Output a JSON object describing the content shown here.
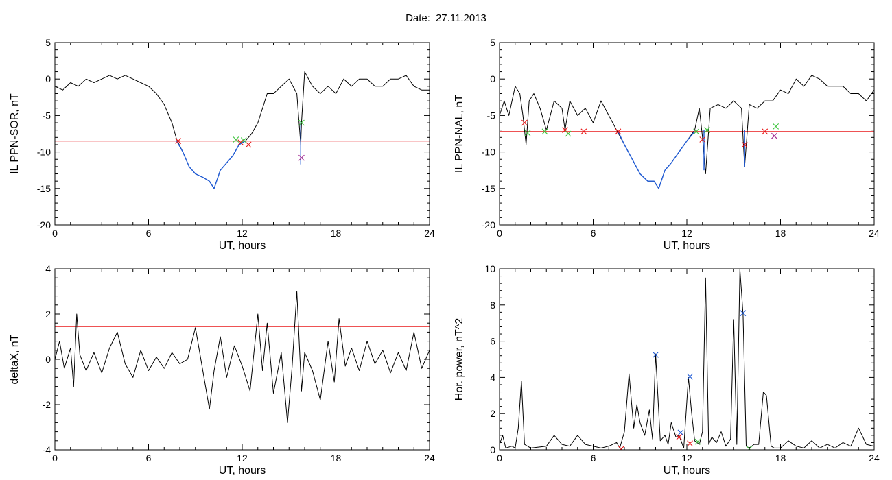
{
  "figure": {
    "date_label": "Date:",
    "date": "27.11.2013"
  },
  "colors": {
    "black": "#000000",
    "red": "#e8191a",
    "blue": "#1f5bd6",
    "green": "#3fc43f",
    "purple": "#a0268f"
  },
  "chart_data": [
    {
      "type": "line",
      "ylabel": "IL PPN-SOR, nT",
      "xlabel": "UT, hours",
      "xlim": [
        0,
        24
      ],
      "ylim": [
        -20,
        5
      ],
      "xticks": [
        0,
        6,
        12,
        18,
        24
      ],
      "yticks": [
        5,
        0,
        -5,
        -10,
        -15,
        -20
      ],
      "threshold": -8.5,
      "series": [
        {
          "color": "black",
          "x": [
            0,
            0.5,
            1,
            1.5,
            2,
            2.5,
            3,
            3.5,
            4,
            4.5,
            5,
            5.5,
            6,
            6.5,
            7,
            7.5,
            7.8,
            8.2,
            8.6,
            9,
            9.5,
            9.9,
            10.2,
            10.6,
            11,
            11.4,
            11.8,
            12.2,
            12.6,
            13,
            13.3,
            13.6,
            14,
            14.5,
            15,
            15.5,
            15.75,
            15.8,
            16,
            16.5,
            17,
            17.5,
            18,
            18.5,
            19,
            19.5,
            20,
            20.5,
            21,
            21.5,
            22,
            22.5,
            23,
            23.5,
            24
          ],
          "y": [
            -1,
            -1.5,
            -0.5,
            -1,
            0,
            -0.5,
            0,
            0.5,
            0,
            0.5,
            0,
            -0.5,
            -1,
            -2,
            -3.5,
            -6,
            -8.3,
            -10,
            -12,
            -13,
            -13.5,
            -14,
            -15,
            -12.5,
            -11.5,
            -10.5,
            -9,
            -8.5,
            -7.5,
            -6,
            -4,
            -2,
            -2,
            -1,
            0,
            -2,
            -9,
            -6,
            1,
            -1,
            -2,
            -1,
            -2,
            0,
            -1,
            0,
            0,
            -1,
            -1,
            0,
            0,
            0.5,
            -1,
            -1.5,
            -1.5
          ]
        },
        {
          "color": "blue",
          "x": [
            7.8,
            8.2,
            8.6,
            9,
            9.5,
            9.9,
            10.2,
            10.6,
            11,
            11.4,
            11.8,
            12.2
          ],
          "y": [
            -8.5,
            -10,
            -12,
            -13,
            -13.5,
            -14,
            -15,
            -12.5,
            -11.5,
            -10.5,
            -9,
            -8.5
          ]
        },
        {
          "color": "blue",
          "x": [
            15.75,
            15.75
          ],
          "y": [
            -5.8,
            -11.7
          ]
        }
      ],
      "markers": [
        {
          "color": "red",
          "x": 7.9,
          "y": -8.5
        },
        {
          "color": "red",
          "x": 11.9,
          "y": -8.7
        },
        {
          "color": "red",
          "x": 12.4,
          "y": -9.0
        },
        {
          "color": "green",
          "x": 11.6,
          "y": -8.3
        },
        {
          "color": "green",
          "x": 12.1,
          "y": -8.4
        },
        {
          "color": "green",
          "x": 15.8,
          "y": -6.0
        },
        {
          "color": "purple",
          "x": 15.8,
          "y": -10.8
        }
      ]
    },
    {
      "type": "line",
      "ylabel": "IL PPN-NAL, nT",
      "xlabel": "UT, hours",
      "xlim": [
        0,
        24
      ],
      "ylim": [
        -20,
        5
      ],
      "xticks": [
        0,
        6,
        12,
        18,
        24
      ],
      "yticks": [
        5,
        0,
        -5,
        -10,
        -15,
        -20
      ],
      "threshold": -7.2,
      "series": [
        {
          "color": "black",
          "x": [
            0,
            0.3,
            0.6,
            1,
            1.3,
            1.5,
            1.7,
            1.9,
            2.2,
            2.6,
            3,
            3.5,
            4,
            4.2,
            4.5,
            5,
            5.5,
            6,
            6.5,
            7,
            7.5,
            8,
            8.5,
            9,
            9.5,
            9.9,
            10.2,
            10.6,
            11,
            11.5,
            12,
            12.5,
            12.8,
            13,
            13.2,
            13.5,
            14,
            14.5,
            15,
            15.5,
            15.7,
            16,
            16.5,
            17,
            17.5,
            18,
            18.5,
            19,
            19.5,
            20,
            20.5,
            21,
            21.5,
            22,
            22.5,
            23,
            23.5,
            24
          ],
          "y": [
            -5,
            -3,
            -5,
            -1,
            -2,
            -5,
            -9,
            -3,
            -2,
            -4,
            -7,
            -3,
            -4,
            -7,
            -3,
            -5,
            -4,
            -6,
            -3,
            -5,
            -7,
            -9,
            -11,
            -13,
            -14,
            -14,
            -15,
            -12.5,
            -11.5,
            -10,
            -8.5,
            -7,
            -4,
            -8,
            -13,
            -4,
            -3.5,
            -4,
            -3,
            -4,
            -12,
            -3.5,
            -4,
            -3,
            -3,
            -1.5,
            -2,
            0,
            -1,
            0.5,
            0,
            -1,
            -1,
            -1,
            -2,
            -2,
            -3,
            -1.5
          ]
        },
        {
          "color": "blue",
          "x": [
            7.6,
            8,
            8.5,
            9,
            9.5,
            9.9,
            10.2,
            10.6,
            11,
            11.5,
            12,
            12.5
          ],
          "y": [
            -7.2,
            -9,
            -11,
            -13,
            -14,
            -14,
            -15,
            -12.5,
            -11.5,
            -10,
            -8.5,
            -7.2
          ]
        },
        {
          "color": "blue",
          "x": [
            13.1,
            13.1
          ],
          "y": [
            -7,
            -12.5
          ]
        },
        {
          "color": "blue",
          "x": [
            15.7,
            15.7
          ],
          "y": [
            -7,
            -12
          ]
        }
      ],
      "markers": [
        {
          "color": "red",
          "x": 1.6,
          "y": -6.0
        },
        {
          "color": "red",
          "x": 4.2,
          "y": -7.0
        },
        {
          "color": "red",
          "x": 5.4,
          "y": -7.2
        },
        {
          "color": "red",
          "x": 7.6,
          "y": -7.2
        },
        {
          "color": "red",
          "x": 13.0,
          "y": -8.3
        },
        {
          "color": "red",
          "x": 15.7,
          "y": -9.0
        },
        {
          "color": "red",
          "x": 17.0,
          "y": -7.2
        },
        {
          "color": "purple",
          "x": 17.6,
          "y": -7.8
        },
        {
          "color": "green",
          "x": 1.8,
          "y": -7.4
        },
        {
          "color": "green",
          "x": 2.9,
          "y": -7.2
        },
        {
          "color": "green",
          "x": 4.4,
          "y": -7.5
        },
        {
          "color": "green",
          "x": 12.6,
          "y": -7.2
        },
        {
          "color": "green",
          "x": 13.3,
          "y": -7.0
        },
        {
          "color": "green",
          "x": 17.7,
          "y": -6.5
        }
      ]
    },
    {
      "type": "line",
      "ylabel": "deltaX, nT",
      "xlabel": "UT, hours",
      "xlim": [
        0,
        24
      ],
      "ylim": [
        -4,
        4
      ],
      "xticks": [
        0,
        6,
        12,
        18,
        24
      ],
      "yticks": [
        4,
        2,
        0,
        -2,
        -4
      ],
      "threshold": 1.45,
      "series": [
        {
          "color": "black",
          "x": [
            0,
            0.3,
            0.6,
            1,
            1.2,
            1.4,
            1.6,
            2,
            2.5,
            3,
            3.5,
            4,
            4.5,
            5,
            5.5,
            6,
            6.5,
            7,
            7.5,
            8,
            8.5,
            9,
            9.3,
            9.6,
            9.9,
            10.2,
            10.6,
            11,
            11.5,
            12,
            12.5,
            13,
            13.3,
            13.6,
            14,
            14.5,
            14.9,
            15.2,
            15.5,
            15.8,
            16,
            16.5,
            17,
            17.5,
            17.9,
            18.2,
            18.6,
            19,
            19.5,
            20,
            20.5,
            21,
            21.5,
            22,
            22.5,
            23,
            23.5,
            24
          ],
          "y": [
            0,
            0.8,
            -0.4,
            0.5,
            -1.2,
            2,
            0.2,
            -0.5,
            0.3,
            -0.6,
            0.5,
            1.2,
            -0.2,
            -0.8,
            0.4,
            -0.5,
            0.1,
            -0.4,
            0.3,
            -0.2,
            0,
            1.4,
            0.2,
            -1,
            -2.2,
            -0.5,
            1,
            -0.8,
            0.6,
            -0.3,
            -1.4,
            2,
            -0.5,
            1.6,
            -1.5,
            0.3,
            -2.8,
            -0.3,
            3,
            -1.4,
            0.3,
            -0.5,
            -1.8,
            0.8,
            -1,
            1.8,
            -0.3,
            0.5,
            -0.5,
            0.8,
            -0.2,
            0.4,
            -0.6,
            0.3,
            -0.5,
            1.2,
            -0.4,
            0.4
          ]
        }
      ],
      "markers": []
    },
    {
      "type": "line",
      "ylabel": "Hor. power, nT^2",
      "xlabel": "UT, hours",
      "xlim": [
        0,
        24
      ],
      "ylim": [
        0,
        10
      ],
      "xticks": [
        0,
        6,
        12,
        18,
        24
      ],
      "yticks": [
        10,
        8,
        6,
        4,
        2,
        0
      ],
      "threshold": null,
      "series": [
        {
          "color": "black",
          "x": [
            0,
            0.2,
            0.4,
            0.8,
            1,
            1.2,
            1.4,
            1.6,
            2,
            3,
            3.5,
            4,
            4.5,
            5,
            5.5,
            6,
            6.5,
            7,
            7.5,
            7.7,
            8,
            8.3,
            8.6,
            8.8,
            9,
            9.3,
            9.6,
            9.8,
            10,
            10.3,
            10.6,
            10.8,
            11,
            11.3,
            11.5,
            11.8,
            12.1,
            12.3,
            12.5,
            12.8,
            13,
            13.2,
            13.4,
            13.6,
            13.9,
            14.2,
            14.5,
            14.8,
            15,
            15.2,
            15.4,
            15.6,
            15.8,
            16,
            16.3,
            16.6,
            16.9,
            17.1,
            17.4,
            17.6,
            18,
            18.5,
            19,
            19.5,
            20,
            20.5,
            21,
            21.5,
            22,
            22.5,
            23,
            23.5,
            24
          ],
          "y": [
            0.3,
            0.8,
            0.1,
            0.2,
            0.1,
            1.2,
            3.8,
            0.3,
            0.1,
            0.2,
            0.8,
            0.3,
            0.2,
            0.8,
            0.3,
            0.2,
            0.1,
            0.2,
            0.4,
            0.1,
            1,
            4.2,
            1.2,
            2.5,
            1.5,
            0.8,
            2.2,
            0.6,
            5.3,
            0.5,
            0.8,
            0.3,
            1.5,
            0.7,
            0.8,
            0.1,
            4,
            2.1,
            0.5,
            0.3,
            1,
            9.5,
            0.3,
            0.7,
            0.4,
            1,
            0.2,
            0.6,
            7.2,
            0.3,
            10,
            7.5,
            0.2,
            0.1,
            0.3,
            0.3,
            3.2,
            3,
            0.2,
            0.1,
            0.1,
            0.5,
            0.2,
            0.1,
            0.5,
            0.1,
            0.3,
            0.1,
            0.4,
            0.2,
            1.2,
            0.3,
            0.2
          ]
        }
      ],
      "markers": [
        {
          "color": "blue",
          "x": 10.0,
          "y": 5.25
        },
        {
          "color": "blue",
          "x": 12.2,
          "y": 4.05
        },
        {
          "color": "blue",
          "x": 15.6,
          "y": 7.55
        },
        {
          "color": "blue",
          "x": 11.6,
          "y": 0.95
        },
        {
          "color": "red",
          "x": 7.8,
          "y": 0.05
        },
        {
          "color": "red",
          "x": 11.5,
          "y": 0.7
        },
        {
          "color": "red",
          "x": 12.2,
          "y": 0.35
        },
        {
          "color": "green",
          "x": 12.7,
          "y": 0.45
        },
        {
          "color": "green",
          "x": 16.0,
          "y": 0.05
        }
      ]
    }
  ]
}
